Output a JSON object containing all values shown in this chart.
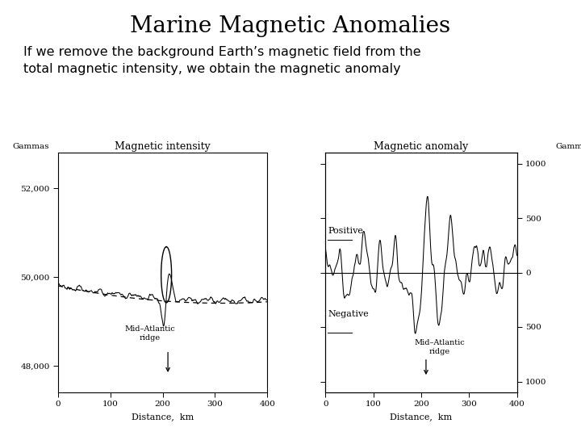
{
  "title": "Marine Magnetic Anomalies",
  "subtitle_line1": "If we remove the background Earth’s magnetic field from the",
  "subtitle_line2": "total magnetic intensity, we obtain the magnetic anomaly",
  "background_color": "#ffffff",
  "left_plot": {
    "title": "Magnetic intensity",
    "xlabel": "Distance,  km",
    "ylabel_left": "Gammas",
    "yticks_left": [
      48000,
      50000,
      52000
    ],
    "ytick_labels_left": [
      "48,000",
      "50,000",
      "52,000"
    ],
    "xlim": [
      0,
      400
    ],
    "ylim": [
      47400,
      52800
    ],
    "ridge_label_line1": "Mid–Atlantic",
    "ridge_label_line2": "ridge",
    "ridge_x": 210
  },
  "right_plot": {
    "title": "Magnetic anomaly",
    "xlabel": "Distance,  km",
    "ylabel_right": "Gammas",
    "ytick_labels_right": [
      "1000",
      "500",
      "0",
      "500",
      "1000"
    ],
    "xlim": [
      0,
      400
    ],
    "ylim": [
      -1100,
      1100
    ],
    "positive_label": "Positive",
    "negative_label": "Negative",
    "ridge_label_line1": "Mid–Atlantic",
    "ridge_label_line2": "ridge",
    "ridge_x": 210
  }
}
